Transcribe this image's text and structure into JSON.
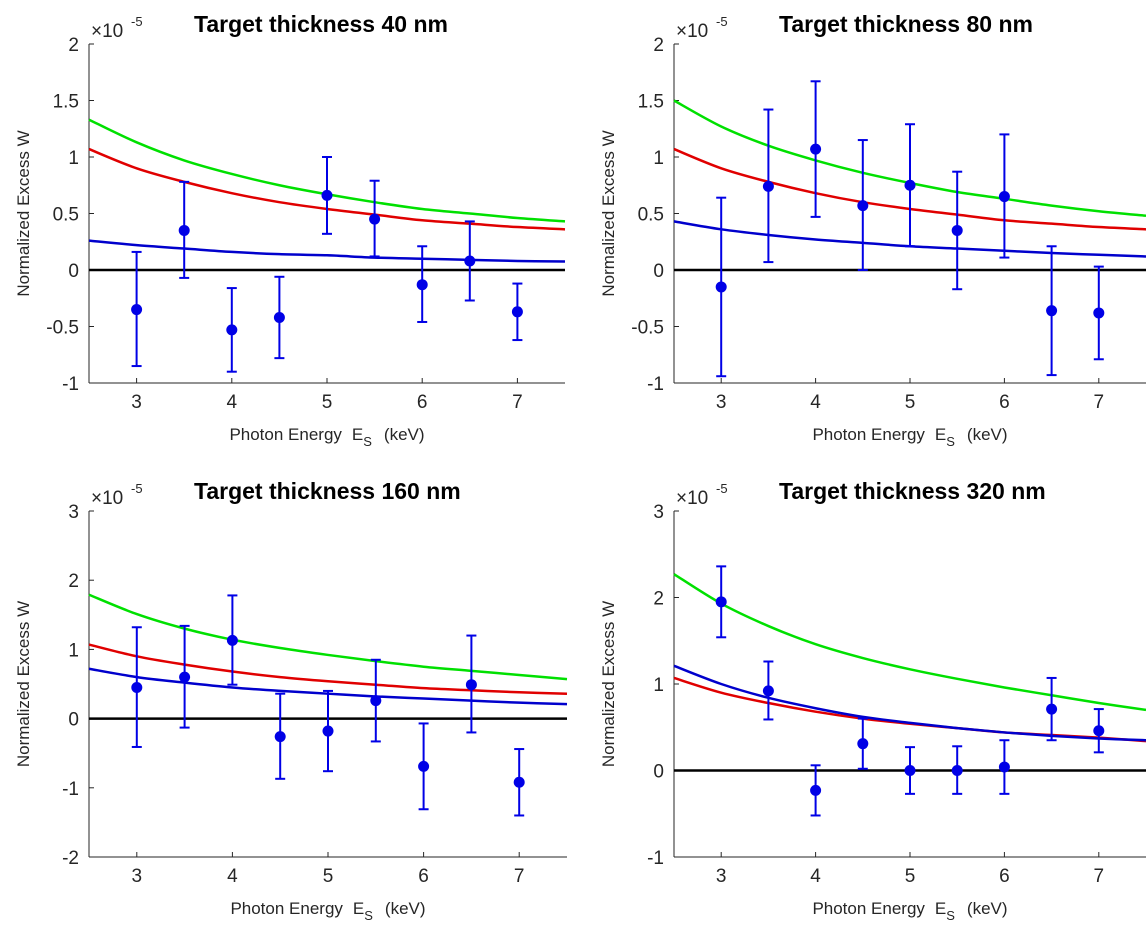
{
  "colors": {
    "axis": "#262626",
    "zero_line": "#000000",
    "green_curve": "#00e000",
    "red_curve": "#e00000",
    "blue_curve": "#0000cc",
    "data_points": "#0000e6"
  },
  "chart_data": [
    {
      "type": "scatter",
      "title": "Target thickness 40 nm",
      "xlabel": "Photon Energy",
      "xlabel_symbol": "E",
      "xlabel_sub": "S",
      "xlabel_unit": "(keV)",
      "ylabel": "Normalized Excess  W",
      "multiplier_base": "×10",
      "multiplier_exp": "-5",
      "xlim": [
        2.5,
        7.5
      ],
      "ylim": [
        -1,
        2
      ],
      "xticks": [
        3,
        4,
        5,
        6,
        7
      ],
      "yticks": [
        -1,
        -0.5,
        0,
        0.5,
        1,
        1.5,
        2
      ],
      "ytick_labels": [
        "-1",
        "-0.5",
        "0",
        "0.5",
        "1",
        "1.5",
        "2"
      ],
      "grid": false,
      "x": [
        3,
        3.5,
        4,
        4.5,
        5,
        5.5,
        6,
        6.5,
        7
      ],
      "y": [
        -0.35,
        0.35,
        -0.53,
        -0.42,
        0.66,
        0.45,
        -0.13,
        0.08,
        -0.37
      ],
      "yerr_low": [
        0.5,
        0.42,
        0.37,
        0.36,
        0.34,
        0.33,
        0.33,
        0.35,
        0.25
      ],
      "yerr_high": [
        0.51,
        0.43,
        0.37,
        0.36,
        0.34,
        0.34,
        0.34,
        0.35,
        0.25
      ],
      "curves": [
        {
          "color": "green",
          "x": [
            2.5,
            3,
            3.5,
            4,
            4.5,
            5,
            5.5,
            6,
            6.5,
            7,
            7.5
          ],
          "y": [
            1.33,
            1.13,
            0.97,
            0.85,
            0.75,
            0.67,
            0.6,
            0.54,
            0.5,
            0.46,
            0.43
          ]
        },
        {
          "color": "red",
          "x": [
            2.5,
            3,
            3.5,
            4,
            4.5,
            5,
            5.5,
            6,
            6.5,
            7,
            7.5
          ],
          "y": [
            1.07,
            0.9,
            0.78,
            0.68,
            0.6,
            0.54,
            0.49,
            0.44,
            0.41,
            0.38,
            0.36
          ]
        },
        {
          "color": "blue",
          "x": [
            2.5,
            3,
            3.5,
            4,
            4.5,
            5,
            5.5,
            6,
            6.5,
            7,
            7.5
          ],
          "y": [
            0.26,
            0.22,
            0.19,
            0.16,
            0.14,
            0.13,
            0.11,
            0.1,
            0.09,
            0.08,
            0.075
          ]
        }
      ]
    },
    {
      "type": "scatter",
      "title": "Target thickness 80 nm",
      "xlabel": "Photon Energy",
      "xlabel_symbol": "E",
      "xlabel_sub": "S",
      "xlabel_unit": "(keV)",
      "ylabel": "Normalized Excess  W",
      "multiplier_base": "×10",
      "multiplier_exp": "-5",
      "xlim": [
        2.5,
        7.5
      ],
      "ylim": [
        -1,
        2
      ],
      "xticks": [
        3,
        4,
        5,
        6,
        7
      ],
      "yticks": [
        -1,
        -0.5,
        0,
        0.5,
        1,
        1.5,
        2
      ],
      "ytick_labels": [
        "-1",
        "-0.5",
        "0",
        "0.5",
        "1",
        "1.5",
        "2"
      ],
      "grid": false,
      "x": [
        3,
        3.5,
        4,
        4.5,
        5,
        5.5,
        6,
        6.5,
        7
      ],
      "y": [
        -0.15,
        0.74,
        1.07,
        0.57,
        0.75,
        0.35,
        0.65,
        -0.36,
        -0.38
      ],
      "yerr_low": [
        0.79,
        0.67,
        0.6,
        0.57,
        0.54,
        0.52,
        0.54,
        0.57,
        0.41
      ],
      "yerr_high": [
        0.79,
        0.68,
        0.6,
        0.58,
        0.54,
        0.52,
        0.55,
        0.57,
        0.41
      ],
      "curves": [
        {
          "color": "green",
          "x": [
            2.5,
            3,
            3.5,
            4,
            4.5,
            5,
            5.5,
            6,
            6.5,
            7,
            7.5
          ],
          "y": [
            1.5,
            1.27,
            1.1,
            0.97,
            0.86,
            0.77,
            0.69,
            0.63,
            0.57,
            0.52,
            0.48
          ]
        },
        {
          "color": "red",
          "x": [
            2.5,
            3,
            3.5,
            4,
            4.5,
            5,
            5.5,
            6,
            6.5,
            7,
            7.5
          ],
          "y": [
            1.07,
            0.9,
            0.78,
            0.68,
            0.6,
            0.54,
            0.49,
            0.44,
            0.41,
            0.38,
            0.36
          ]
        },
        {
          "color": "blue",
          "x": [
            2.5,
            3,
            3.5,
            4,
            4.5,
            5,
            5.5,
            6,
            6.5,
            7,
            7.5
          ],
          "y": [
            0.43,
            0.36,
            0.31,
            0.27,
            0.24,
            0.21,
            0.19,
            0.17,
            0.15,
            0.135,
            0.12
          ]
        }
      ]
    },
    {
      "type": "scatter",
      "title": "Target thickness 160 nm",
      "xlabel": "Photon Energy",
      "xlabel_symbol": "E",
      "xlabel_sub": "S",
      "xlabel_unit": "(keV)",
      "ylabel": "Normalized Excess  W",
      "multiplier_base": "×10",
      "multiplier_exp": "-5",
      "xlim": [
        2.5,
        7.5
      ],
      "ylim": [
        -2,
        3
      ],
      "xticks": [
        3,
        4,
        5,
        6,
        7
      ],
      "yticks": [
        -2,
        -1,
        0,
        1,
        2,
        3
      ],
      "ytick_labels": [
        "-2",
        "-1",
        "0",
        "1",
        "2",
        "3"
      ],
      "grid": false,
      "x": [
        3,
        3.5,
        4,
        4.5,
        5,
        5.5,
        6,
        6.5,
        7
      ],
      "y": [
        0.45,
        0.6,
        1.13,
        -0.26,
        -0.18,
        0.26,
        -0.69,
        0.49,
        -0.92
      ],
      "yerr_low": [
        0.86,
        0.73,
        0.64,
        0.61,
        0.58,
        0.59,
        0.62,
        0.69,
        0.48
      ],
      "yerr_high": [
        0.87,
        0.74,
        0.65,
        0.62,
        0.58,
        0.59,
        0.62,
        0.71,
        0.48
      ],
      "curves": [
        {
          "color": "green",
          "x": [
            2.5,
            3,
            3.5,
            4,
            4.5,
            5,
            5.5,
            6,
            6.5,
            7,
            7.5
          ],
          "y": [
            1.79,
            1.51,
            1.3,
            1.14,
            1.02,
            0.92,
            0.83,
            0.75,
            0.69,
            0.63,
            0.57
          ]
        },
        {
          "color": "red",
          "x": [
            2.5,
            3,
            3.5,
            4,
            4.5,
            5,
            5.5,
            6,
            6.5,
            7,
            7.5
          ],
          "y": [
            1.07,
            0.9,
            0.78,
            0.68,
            0.6,
            0.54,
            0.49,
            0.44,
            0.41,
            0.38,
            0.36
          ]
        },
        {
          "color": "blue",
          "x": [
            2.5,
            3,
            3.5,
            4,
            4.5,
            5,
            5.5,
            6,
            6.5,
            7,
            7.5
          ],
          "y": [
            0.72,
            0.6,
            0.52,
            0.45,
            0.4,
            0.36,
            0.32,
            0.29,
            0.26,
            0.23,
            0.21
          ]
        }
      ]
    },
    {
      "type": "scatter",
      "title": "Target thickness 320 nm",
      "xlabel": "Photon Energy",
      "xlabel_symbol": "E",
      "xlabel_sub": "S",
      "xlabel_unit": "(keV)",
      "ylabel": "Normalized Excess  W",
      "multiplier_base": "×10",
      "multiplier_exp": "-5",
      "xlim": [
        2.5,
        7.5
      ],
      "ylim": [
        -1,
        3
      ],
      "xticks": [
        3,
        4,
        5,
        6,
        7
      ],
      "yticks": [
        -1,
        0,
        1,
        2,
        3
      ],
      "ytick_labels": [
        "-1",
        "0",
        "1",
        "2",
        "3"
      ],
      "grid": false,
      "x": [
        3,
        3.5,
        4,
        4.5,
        5,
        5.5,
        6,
        6.5,
        7
      ],
      "y": [
        1.95,
        0.92,
        -0.23,
        0.31,
        0.0,
        0.0,
        0.04,
        0.71,
        0.46
      ],
      "yerr_low": [
        0.41,
        0.33,
        0.29,
        0.29,
        0.27,
        0.27,
        0.31,
        0.36,
        0.25
      ],
      "yerr_high": [
        0.41,
        0.34,
        0.29,
        0.29,
        0.27,
        0.28,
        0.31,
        0.36,
        0.25
      ],
      "curves": [
        {
          "color": "green",
          "x": [
            2.5,
            3,
            3.5,
            4,
            4.5,
            5,
            5.5,
            6,
            6.5,
            7,
            7.5
          ],
          "y": [
            2.27,
            1.93,
            1.67,
            1.46,
            1.3,
            1.17,
            1.06,
            0.96,
            0.87,
            0.78,
            0.7
          ]
        },
        {
          "color": "red",
          "x": [
            2.5,
            3,
            3.5,
            4,
            4.5,
            5,
            5.5,
            6,
            6.5,
            7,
            7.5
          ],
          "y": [
            1.07,
            0.9,
            0.78,
            0.68,
            0.6,
            0.54,
            0.49,
            0.44,
            0.41,
            0.38,
            0.34
          ]
        },
        {
          "color": "blue",
          "x": [
            2.5,
            3,
            3.5,
            4,
            4.5,
            5,
            5.5,
            6,
            6.5,
            7,
            7.5
          ],
          "y": [
            1.21,
            1.0,
            0.84,
            0.72,
            0.62,
            0.55,
            0.49,
            0.44,
            0.4,
            0.37,
            0.35
          ]
        }
      ]
    }
  ]
}
